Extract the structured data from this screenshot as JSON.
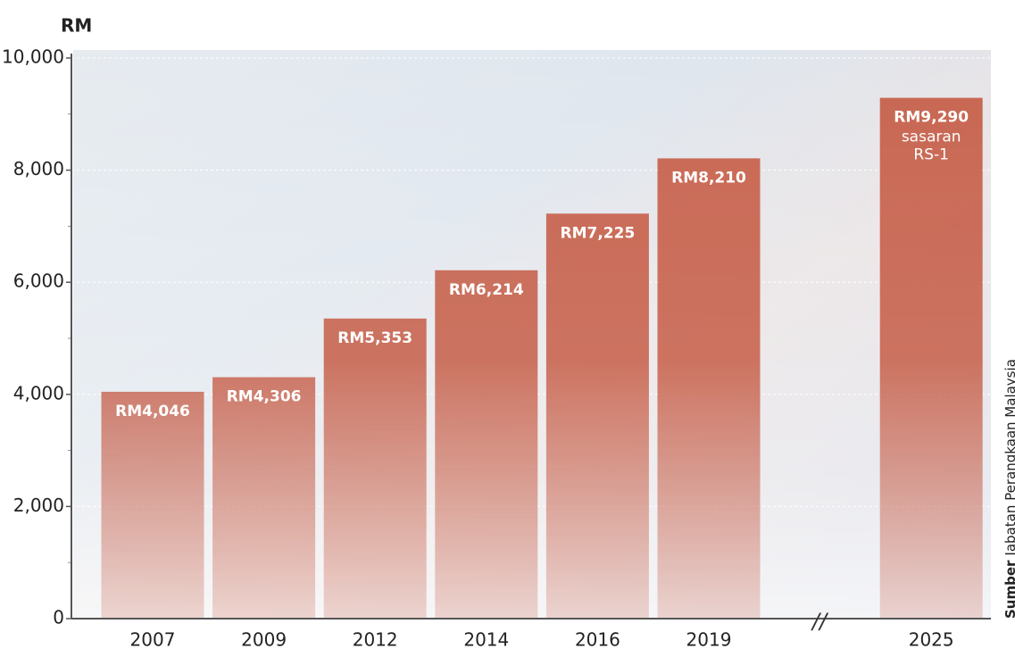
{
  "chart_data": {
    "type": "bar",
    "y_label": "RM",
    "categories": [
      "2007",
      "2009",
      "2012",
      "2014",
      "2016",
      "2019",
      "2025"
    ],
    "values": [
      4046,
      4306,
      5353,
      6214,
      7225,
      8210,
      9290
    ],
    "value_labels": [
      "RM4,046",
      "RM4,306",
      "RM5,353",
      "RM6,214",
      "RM7,225",
      "RM8,210",
      "RM9,290"
    ],
    "annotation": "sasaran RS-1",
    "color": "#c4573f",
    "ylim": [
      0,
      10000
    ],
    "yticks": [
      0,
      {
        "value": 2000,
        "label": "2,000"
      },
      {
        "value": 4000,
        "label": "4,000"
      },
      {
        "value": 6000,
        "label": "6,000"
      },
      {
        "value": 8000,
        "label": "8,000"
      },
      {
        "value": 10000,
        "label": "10,000"
      }
    ],
    "minor_yticks": [
      1000,
      3000,
      5000,
      7000,
      9000
    ],
    "grid": true,
    "source_label": "Sumber",
    "source": "Jabatan Perangkaan Malaysia"
  }
}
